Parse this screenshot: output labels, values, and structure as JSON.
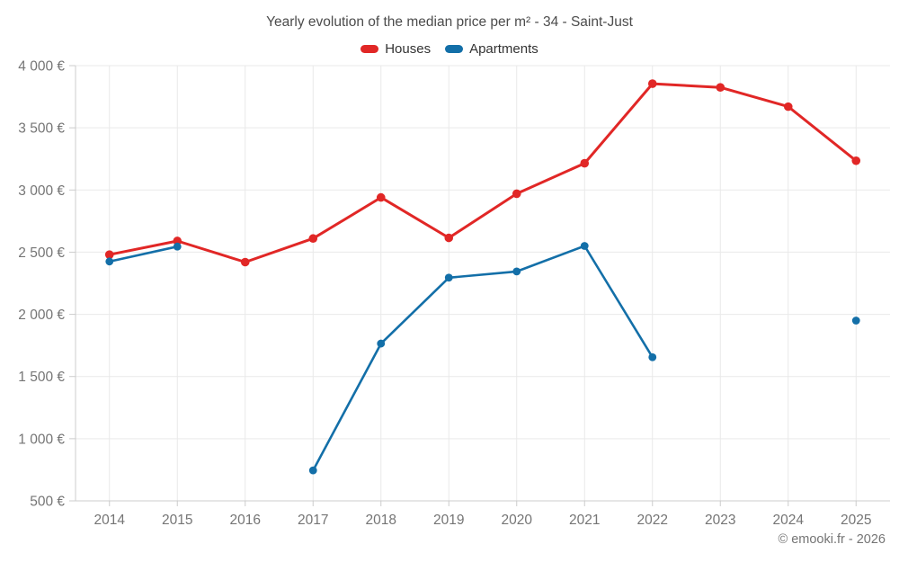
{
  "title": "Yearly evolution of the median price per m² - 34 - Saint-Just",
  "footer": "© emooki.fr - 2026",
  "colors": {
    "houses": "#e12726",
    "apartments": "#136fa8",
    "grid": "#e9e9e9",
    "axis": "#cccccc",
    "tick_label": "#757575",
    "title_text": "#4c4c4c",
    "legend_text": "#333333"
  },
  "chart_data": {
    "type": "line",
    "title": "Yearly evolution of the median price per m² - 34 - Saint-Just",
    "categories": [
      "2014",
      "2015",
      "2016",
      "2017",
      "2018",
      "2019",
      "2020",
      "2021",
      "2022",
      "2023",
      "2024",
      "2025"
    ],
    "series": [
      {
        "name": "Houses",
        "color": "#e12726",
        "values": [
          2480,
          2590,
          2420,
          2610,
          2940,
          2615,
          2970,
          3215,
          3855,
          3825,
          3670,
          3235
        ]
      },
      {
        "name": "Apartments",
        "color": "#136fa8",
        "values": [
          2425,
          2545,
          null,
          745,
          1765,
          2295,
          2345,
          2550,
          1655,
          null,
          null,
          1950
        ]
      }
    ],
    "xlabel": "",
    "ylabel": "",
    "ylim": [
      500,
      4000
    ],
    "ytick_step": 500,
    "ytick_suffix": " €",
    "thousands_separator": " ",
    "grid": true,
    "legend_position": "top",
    "marker": "circle"
  }
}
